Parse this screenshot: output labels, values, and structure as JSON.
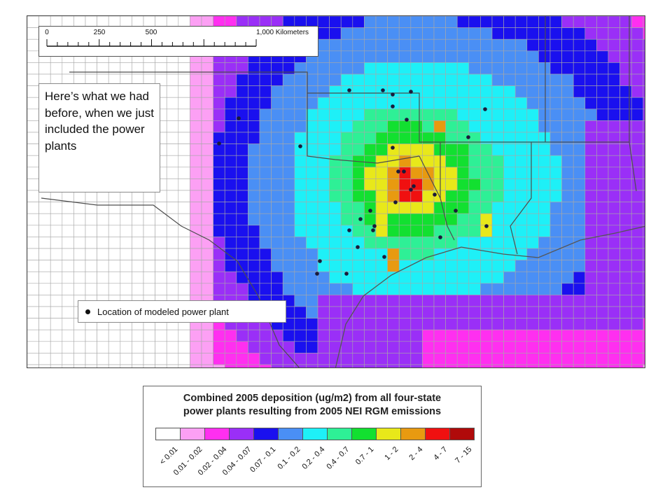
{
  "map": {
    "scale_bar": {
      "ticks": [
        "0",
        "250",
        "500",
        "1,000 Kilometers"
      ]
    },
    "callout_text": "Here’s what we had before, when we just included the power plants",
    "plant_legend": {
      "label": "Location of modeled power plant"
    },
    "colors": {
      "bins": [
        "#ffffff",
        "#fca0f4",
        "#ff2ff0",
        "#9a2ff7",
        "#1a10ef",
        "#4a8ff5",
        "#1ef0f7",
        "#2ef096",
        "#12e030",
        "#e8e81a",
        "#e89a10",
        "#f01010",
        "#b00a0a"
      ],
      "state_lines": "#4d4d4d",
      "grid": "#a8a8a8"
    },
    "grid_description": "Gridded deposition rendered with cell colors by bin index"
  },
  "color_legend": {
    "title_line1": "Combined 2005 deposition (ug/m2) from all four-state",
    "title_line2": "power plants resulting from 2005 NEI RGM emissions",
    "bins": [
      {
        "label": "< 0.01",
        "color": "#ffffff"
      },
      {
        "label": "0.01 - 0.02",
        "color": "#fca0f4"
      },
      {
        "label": "0.02 - 0.04",
        "color": "#ff2ff0"
      },
      {
        "label": "0.04 - 0.07",
        "color": "#9a2ff7"
      },
      {
        "label": "0.07 - 0.1",
        "color": "#1a10ef"
      },
      {
        "label": "0.1 - 0.2",
        "color": "#4a8ff5"
      },
      {
        "label": "0.2 - 0.4",
        "color": "#1ef0f7"
      },
      {
        "label": "0.4 - 0.7",
        "color": "#2ef096"
      },
      {
        "label": "0.7 - 1",
        "color": "#12e030"
      },
      {
        "label": "1 - 2",
        "color": "#e8e81a"
      },
      {
        "label": "2 - 4",
        "color": "#e89a10"
      },
      {
        "label": "4 - 7",
        "color": "#f01010"
      },
      {
        "label": "7 - 15",
        "color": "#b00a0a"
      }
    ]
  }
}
